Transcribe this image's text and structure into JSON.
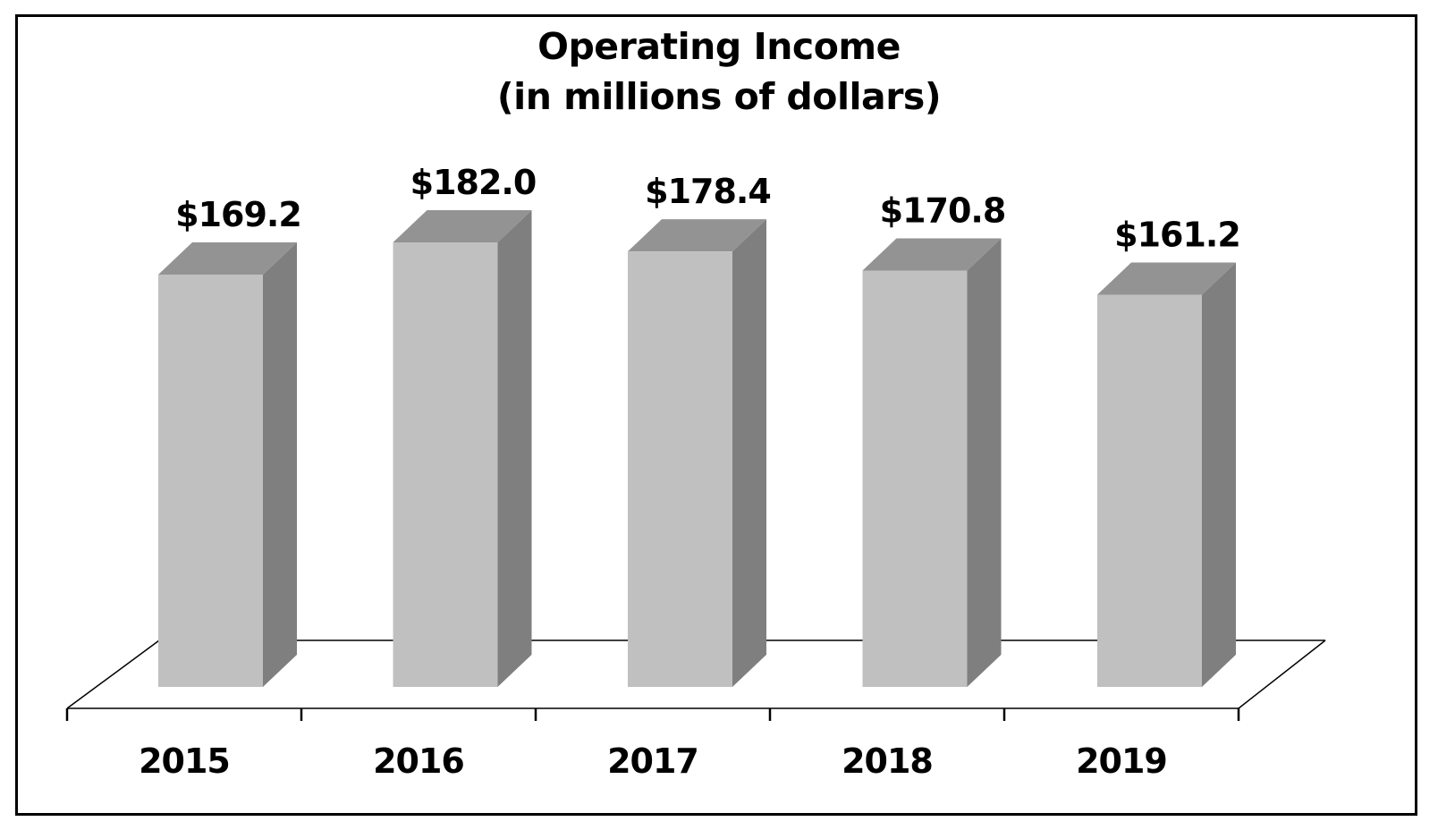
{
  "chart": {
    "title_line1": "Operating Income",
    "title_line2": "(in millions of dollars)"
  },
  "colors": {
    "bar_front": "#c0c0c0",
    "bar_top": "#939393",
    "bar_side": "#7f7f7f",
    "axis": "#000000",
    "frame": "#000000"
  },
  "chart_data": {
    "type": "bar",
    "style": "3d-column",
    "title": "Operating Income (in millions of dollars)",
    "categories": [
      "2015",
      "2016",
      "2017",
      "2018",
      "2019"
    ],
    "values": [
      169.2,
      182.0,
      178.4,
      170.8,
      161.2
    ],
    "data_labels": [
      "$169.2",
      "$182.0",
      "$178.4",
      "$170.8",
      "$161.2"
    ],
    "xlabel": "",
    "ylabel": "",
    "y_axis_visible": false,
    "grid": false,
    "legend": "none",
    "unit": "millions of dollars"
  }
}
